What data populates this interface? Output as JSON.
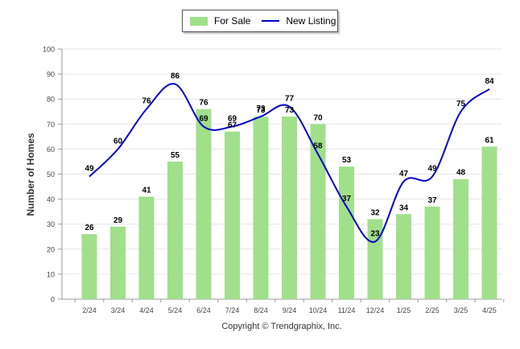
{
  "chart_data": {
    "type": "bar",
    "categories": [
      "2/24",
      "3/24",
      "4/24",
      "5/24",
      "6/24",
      "7/24",
      "8/24",
      "9/24",
      "10/24",
      "11/24",
      "12/24",
      "1/25",
      "2/25",
      "3/25",
      "4/25"
    ],
    "series": [
      {
        "name": "For Sale",
        "kind": "bar",
        "color": "#a0e08a",
        "values": [
          26,
          29,
          41,
          55,
          76,
          67,
          73,
          73,
          70,
          53,
          32,
          34,
          37,
          48,
          61
        ]
      },
      {
        "name": "New Listing",
        "kind": "line",
        "color": "#0000cc",
        "values": [
          49,
          60,
          76,
          86,
          69,
          69,
          73,
          77,
          58,
          37,
          23,
          47,
          49,
          75,
          84
        ]
      }
    ],
    "ylabel": "Number of Homes",
    "ylim": [
      0,
      100
    ],
    "yticks": [
      0,
      10,
      20,
      30,
      40,
      50,
      60,
      70,
      80,
      90,
      100
    ],
    "grid": true,
    "legend_position": "top-center"
  },
  "footer": "Copyright © Trendgraphix, Inc."
}
